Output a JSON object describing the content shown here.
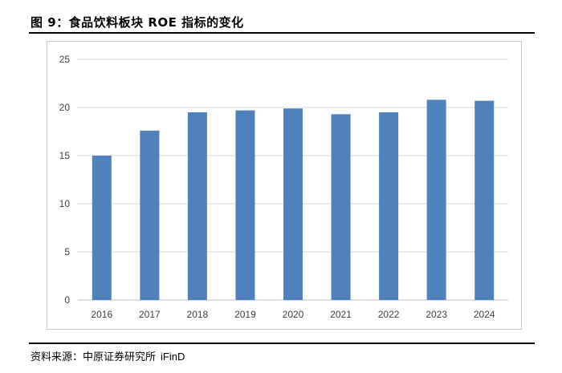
{
  "figure": {
    "title": "图 9：食品饮料板块 ROE 指标的变化",
    "source_prefix": "资料来源：中原证券研究所",
    "source_tool": "iFinD"
  },
  "colors": {
    "bar": "#4f81bd",
    "grid": "#d9d9d9",
    "axis": "#bfbfbf",
    "tick_text": "#404040"
  },
  "chart_data": {
    "type": "bar",
    "title": "",
    "xlabel": "",
    "ylabel": "",
    "categories": [
      "2016",
      "2017",
      "2018",
      "2019",
      "2020",
      "2021",
      "2022",
      "2023",
      "2024"
    ],
    "values": [
      15.0,
      17.6,
      19.5,
      19.7,
      19.9,
      19.3,
      19.5,
      20.8,
      20.7
    ],
    "ylim": [
      0,
      25
    ],
    "yticks": [
      0,
      5,
      10,
      15,
      20,
      25
    ],
    "grid": true,
    "legend": "none"
  }
}
